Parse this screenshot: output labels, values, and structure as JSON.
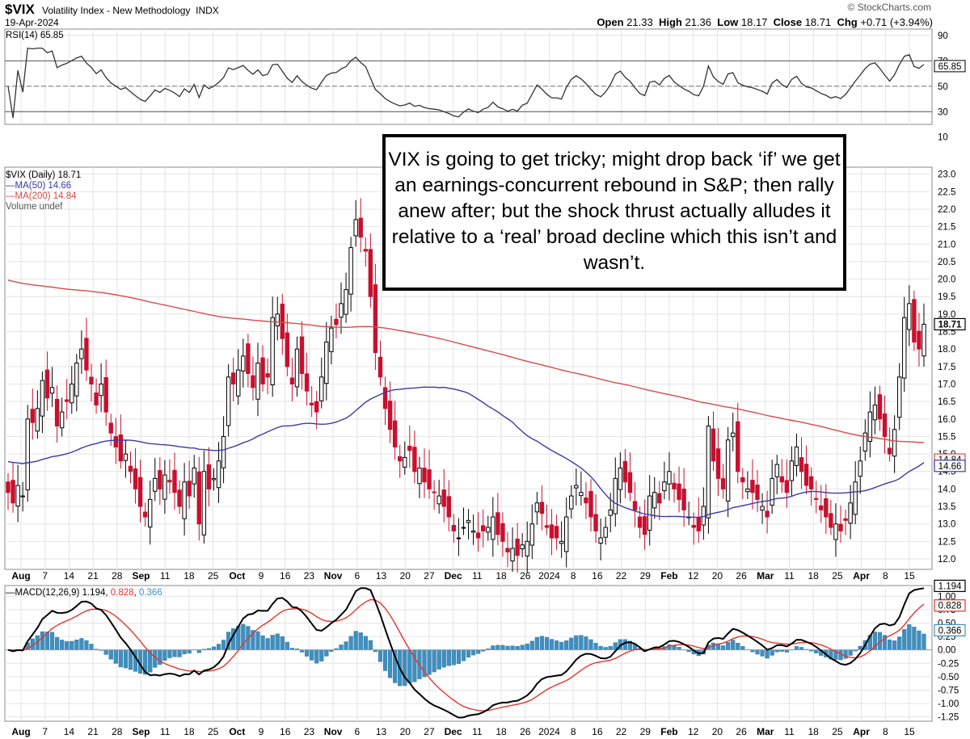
{
  "header": {
    "symbol": "$VIX",
    "name": "Volatility Index - New Methodology",
    "exchange": "INDX",
    "date": "19-Apr-2024",
    "credit": "© StockCharts.com",
    "open_label": "Open",
    "open": "21.33",
    "high_label": "High",
    "high": "21.36",
    "low_label": "Low",
    "low": "18.17",
    "close_label": "Close",
    "close": "18.71",
    "chg_label": "Chg",
    "chg": "+0.71 (+3.94%)"
  },
  "annotation": "VIX is going to get tricky; might drop back ‘if’ we get an earnings-concurrent rebound in S&P; then rally anew after; but the shock thrust actually alludes it relative to a ‘real’ broad decline which this isn’t and wasn’t.",
  "colors": {
    "up": "#000000",
    "down": "#c8102e",
    "ma50": "#3a3aa8",
    "ma200": "#d94a4a",
    "macd": "#000000",
    "signal": "#e8332a",
    "hist": "#3f8fbf"
  },
  "chart_data": [
    {
      "type": "line",
      "title": "RSI(14) 65.85",
      "series": [
        {
          "name": "RSI(14)",
          "last": 65.85
        }
      ],
      "y_ticks": [
        90,
        70,
        50,
        30,
        10
      ],
      "overbought": 70,
      "oversold": 30,
      "midline": 50,
      "grid": true
    },
    {
      "type": "candlestick",
      "legend": [
        {
          "label": "$VIX (Daily) 18.71",
          "color": "#000000"
        },
        {
          "label": "MA(50) 14.66",
          "color": "#3a3aa8"
        },
        {
          "label": "MA(200) 14.84",
          "color": "#d94a4a"
        },
        {
          "label": "Volume undef",
          "color": "#555555"
        }
      ],
      "y_ticks": [
        "23.0",
        "22.5",
        "22.0",
        "21.5",
        "21.0",
        "20.5",
        "20.0",
        "19.5",
        "19.0",
        "18.5",
        "18.0",
        "17.5",
        "17.0",
        "16.5",
        "16.0",
        "15.5",
        "15.0",
        "14.5",
        "14.0",
        "13.5",
        "13.0",
        "12.5",
        "12.0"
      ],
      "ylim": [
        11.7,
        23.2
      ],
      "last_labels": [
        {
          "text": "18.71",
          "value": 18.71,
          "color": "#000000"
        },
        {
          "text": "14.84",
          "value": 14.84,
          "color": "#d94a4a"
        },
        {
          "text": "14.66",
          "value": 14.66,
          "color": "#3a3aa8"
        }
      ],
      "x_ticks": [
        "Aug",
        "7",
        "14",
        "21",
        "28",
        "Sep",
        "11",
        "18",
        "25",
        "Oct",
        "9",
        "16",
        "23",
        "Nov",
        "6",
        "13",
        "20",
        "27",
        "Dec",
        "11",
        "18",
        "26",
        "2024",
        "8",
        "16",
        "22",
        "29",
        "Feb",
        "12",
        "20",
        "26",
        "Mar",
        "11",
        "18",
        "25",
        "Apr",
        "8",
        "15"
      ],
      "closes": [
        13.9,
        13.6,
        14.1,
        13.8,
        16.0,
        15.9,
        16.3,
        17.1,
        16.6,
        16.9,
        15.8,
        16.2,
        16.5,
        17.0,
        17.6,
        18.0,
        17.4,
        17.0,
        16.4,
        17.0,
        16.2,
        15.6,
        15.2,
        14.8,
        15.0,
        14.5,
        14.0,
        13.5,
        13.2,
        13.7,
        14.3,
        14.0,
        14.4,
        14.2,
        13.9,
        13.5,
        14.2,
        13.8,
        14.6,
        13.0,
        14.5,
        14.0,
        14.3,
        14.8,
        15.5,
        17.2,
        17.0,
        17.4,
        17.8,
        17.3,
        16.9,
        17.6,
        17.0,
        17.2,
        18.9,
        19.0,
        18.3,
        17.5,
        17.0,
        18.0,
        17.3,
        16.8,
        16.4,
        16.2,
        17.2,
        18.2,
        18.6,
        18.7,
        19.3,
        19.7,
        20.9,
        21.7,
        21.2,
        20.8,
        19.5,
        17.9,
        17.2,
        16.3,
        15.7,
        15.2,
        14.8,
        14.9,
        15.1,
        14.5,
        14.6,
        14.2,
        14.0,
        13.9,
        13.8,
        13.5,
        13.2,
        12.8,
        12.6,
        12.9,
        13.1,
        12.8,
        12.6,
        12.8,
        12.9,
        13.2,
        12.7,
        12.5,
        12.2,
        12.3,
        12.1,
        12.4,
        12.5,
        13.0,
        13.6,
        13.3,
        12.9,
        12.6,
        12.6,
        12.5,
        13.2,
        13.8,
        14.1,
        13.9,
        13.6,
        13.2,
        12.8,
        12.6,
        12.9,
        13.4,
        14.3,
        14.6,
        14.2,
        13.9,
        13.4,
        12.9,
        12.7,
        13.8,
        13.9,
        13.6,
        14.2,
        14.5,
        14.0,
        13.7,
        13.4,
        13.2,
        12.9,
        12.8,
        13.5,
        15.8,
        14.8,
        14.3,
        14.0,
        15.4,
        15.6,
        14.5,
        14.2,
        14.0,
        13.9,
        13.7,
        13.5,
        13.2,
        14.3,
        14.7,
        14.2,
        13.9,
        14.8,
        15.2,
        14.5,
        14.1,
        14.0,
        13.7,
        13.4,
        13.2,
        12.9,
        13.0,
        12.8,
        13.1,
        13.6,
        14.2,
        14.8,
        15.6,
        16.2,
        16.4,
        16.0,
        15.5,
        15.0,
        15.7,
        17.2,
        18.9,
        19.3,
        18.2,
        18.0,
        18.71
      ]
    },
    {
      "type": "line",
      "title": "MACD(12,26,9) 1.194, 0.828, 0.366",
      "legend": [
        {
          "name": "MACD(12,26,9)",
          "value": "1.194",
          "color": "#000000"
        },
        {
          "name": "",
          "value": "0.828",
          "color": "#e8332a"
        },
        {
          "name": "",
          "value": "0.366",
          "color": "#3f8fbf"
        }
      ],
      "y_ticks": [
        "1.00",
        "0.75",
        "0.50",
        "0.25",
        "0.00",
        "-0.25",
        "-0.50",
        "-0.75",
        "-1.00",
        "-1.25"
      ],
      "ylim": [
        -1.33,
        1.2
      ],
      "last_labels": [
        "1.194",
        "0.828",
        "0.366"
      ],
      "x_ticks": [
        "Aug",
        "7",
        "14",
        "21",
        "28",
        "Sep",
        "11",
        "18",
        "25",
        "Oct",
        "9",
        "16",
        "23",
        "Nov",
        "6",
        "13",
        "20",
        "27",
        "Dec",
        "11",
        "18",
        "26",
        "2024",
        "8",
        "16",
        "22",
        "29",
        "Feb",
        "12",
        "20",
        "26",
        "Mar",
        "11",
        "18",
        "25",
        "Apr",
        "8",
        "15"
      ]
    }
  ]
}
